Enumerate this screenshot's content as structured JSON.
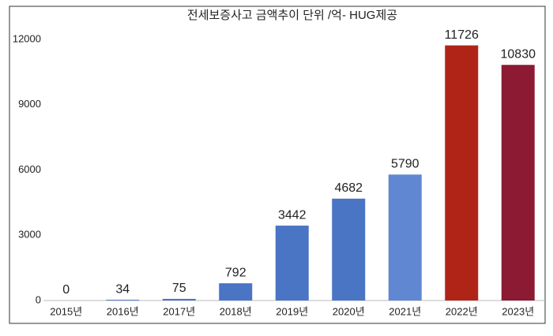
{
  "chart_data": {
    "type": "bar",
    "title": "전세보증사고 금액추이 단위 /억- HUG제공",
    "categories": [
      "2015년",
      "2016년",
      "2017년",
      "2018년",
      "2019년",
      "2020년",
      "2021년",
      "2022년",
      "2023년"
    ],
    "values": [
      0,
      34,
      75,
      792,
      3442,
      4682,
      5790,
      11726,
      10830
    ],
    "colors": [
      "#4a74c4",
      "#4a74c4",
      "#4a74c4",
      "#4a74c4",
      "#4a74c4",
      "#4a74c4",
      "#6088d2",
      "#b02418",
      "#8b1a32"
    ],
    "ylim": [
      0,
      12000
    ],
    "yticks": [
      0,
      3000,
      6000,
      9000,
      12000
    ],
    "grid": false
  }
}
